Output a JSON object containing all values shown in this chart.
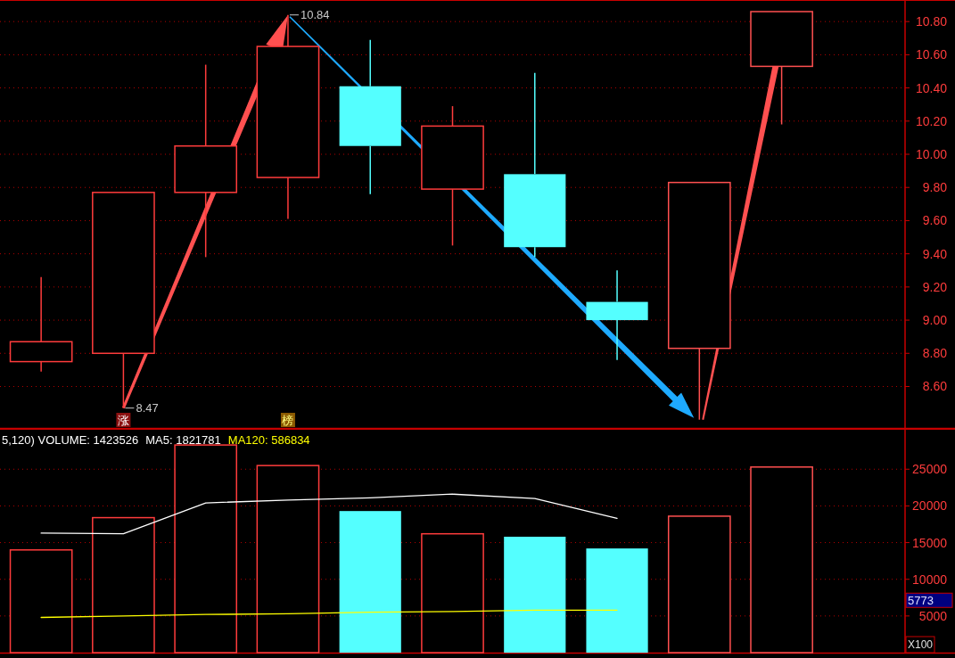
{
  "chart_data": [
    {
      "type": "candlestick",
      "categories": [
        null,
        null,
        null,
        null,
        null,
        null,
        null,
        null,
        null,
        null,
        null
      ],
      "ohlc": [
        [
          8.75,
          9.26,
          8.69,
          8.87
        ],
        [
          8.8,
          9.77,
          8.47,
          9.77
        ],
        [
          9.77,
          10.54,
          9.38,
          10.05
        ],
        [
          9.86,
          10.84,
          9.61,
          10.65
        ],
        [
          10.41,
          10.69,
          9.76,
          10.05
        ],
        [
          9.79,
          10.29,
          9.45,
          10.17
        ],
        [
          9.88,
          10.49,
          9.38,
          9.44
        ],
        [
          9.11,
          9.3,
          8.76,
          9.0
        ],
        [
          8.83,
          9.83,
          8.4,
          9.83
        ],
        [
          10.53,
          10.86,
          10.18,
          10.86
        ],
        null
      ],
      "colors": [
        "#ff3c3c",
        "#ff3c3c",
        "#ff3c3c",
        "#ff3c3c",
        "#54ffff",
        "#ff3c3c",
        "#54ffff",
        "#54ffff",
        "#ff5050",
        "#ff5050",
        null
      ],
      "ylim": [
        8.35,
        10.93
      ],
      "yticks": [
        {
          "value": 8.6,
          "label": "8.60"
        },
        {
          "value": 8.8,
          "label": "8.80"
        },
        {
          "value": 9.0,
          "label": "9.00"
        },
        {
          "value": 9.2,
          "label": "9.20"
        },
        {
          "value": 9.4,
          "label": "9.40"
        },
        {
          "value": 9.6,
          "label": "9.60"
        },
        {
          "value": 9.8,
          "label": "9.80"
        },
        {
          "value": 10.0,
          "label": "10.00"
        },
        {
          "value": 10.2,
          "label": "10.20"
        },
        {
          "value": 10.4,
          "label": "10.40"
        },
        {
          "value": 10.6,
          "label": "10.60"
        },
        {
          "value": 10.8,
          "label": "10.80"
        }
      ],
      "grid": "y",
      "tick_labels": "y",
      "annotations": [
        "8.47",
        "10.84",
        "涨",
        "榜"
      ]
    },
    {
      "type": "bar",
      "categories": [
        null,
        null,
        null,
        null,
        null,
        null,
        null,
        null,
        null,
        null,
        null
      ],
      "title": "5,120) VOLUME: 1423526",
      "series": [
        {
          "type": "bar",
          "colors": [
            "#ff3c3c",
            "#ff3c3c",
            "#ff3c3c",
            "#ff3c3c",
            "#54ffff",
            "#ff3c3c",
            "#54ffff",
            "#54ffff",
            "#ff5050",
            "#ff5050",
            null
          ],
          "values": [
            14000,
            18400,
            28300,
            25500,
            19300,
            16200,
            15800,
            14200,
            18600,
            25300,
            null
          ]
        },
        {
          "type": "line",
          "name": "MA5: 1821781",
          "color": "#ffffff",
          "values": [
            16300,
            16200,
            20400,
            20800,
            21100,
            21600,
            21000,
            18300,
            null,
            null,
            null
          ]
        },
        {
          "type": "line",
          "name": "MA120: 586834",
          "color": "#ffff00",
          "values": [
            4800,
            5000,
            5200,
            5300,
            5500,
            5600,
            5800,
            5800,
            null,
            null,
            null
          ]
        }
      ],
      "ylim": [
        0,
        30500
      ],
      "yticks": [
        5000,
        10000,
        15000,
        20000,
        25000
      ],
      "grid": "y",
      "tick_labels": "y",
      "legend": "top left",
      "annotations": [
        "5773",
        "X100"
      ]
    }
  ]
}
